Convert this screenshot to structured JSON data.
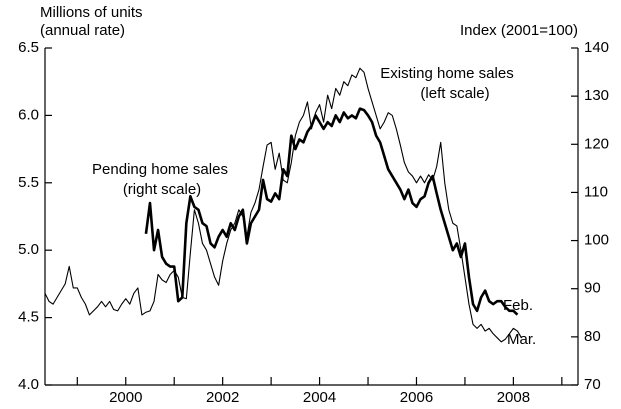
{
  "chart_data": {
    "type": "line",
    "y_label": [
      "Millions of units",
      "(annual rate)"
    ],
    "y2_label": "Index (2001=100)",
    "annotations": [
      {
        "lines": [
          "Existing home sales",
          "(left scale)"
        ]
      },
      {
        "lines": [
          "Pending home sales",
          "(right scale)"
        ]
      },
      {
        "lines": [
          "Feb."
        ]
      },
      {
        "lines": [
          "Mar."
        ]
      }
    ],
    "x": [
      "1998-05",
      "1998-06",
      "1998-07",
      "1998-08",
      "1998-09",
      "1998-10",
      "1998-11",
      "1998-12",
      "1999-01",
      "1999-02",
      "1999-03",
      "1999-04",
      "1999-05",
      "1999-06",
      "1999-07",
      "1999-08",
      "1999-09",
      "1999-10",
      "1999-11",
      "1999-12",
      "2000-01",
      "2000-02",
      "2000-03",
      "2000-04",
      "2000-05",
      "2000-06",
      "2000-07",
      "2000-08",
      "2000-09",
      "2000-10",
      "2000-11",
      "2000-12",
      "2001-01",
      "2001-02",
      "2001-03",
      "2001-04",
      "2001-05",
      "2001-06",
      "2001-07",
      "2001-08",
      "2001-09",
      "2001-10",
      "2001-11",
      "2001-12",
      "2002-01",
      "2002-02",
      "2002-03",
      "2002-04",
      "2002-05",
      "2002-06",
      "2002-07",
      "2002-08",
      "2002-09",
      "2002-10",
      "2002-11",
      "2002-12",
      "2003-01",
      "2003-02",
      "2003-03",
      "2003-04",
      "2003-05",
      "2003-06",
      "2003-07",
      "2003-08",
      "2003-09",
      "2003-10",
      "2003-11",
      "2003-12",
      "2004-01",
      "2004-02",
      "2004-03",
      "2004-04",
      "2004-05",
      "2004-06",
      "2004-07",
      "2004-08",
      "2004-09",
      "2004-10",
      "2004-11",
      "2004-12",
      "2005-01",
      "2005-02",
      "2005-03",
      "2005-04",
      "2005-05",
      "2005-06",
      "2005-07",
      "2005-08",
      "2005-09",
      "2005-10",
      "2005-11",
      "2005-12",
      "2006-01",
      "2006-02",
      "2006-03",
      "2006-04",
      "2006-05",
      "2006-06",
      "2006-07",
      "2006-08",
      "2006-09",
      "2006-10",
      "2006-11",
      "2006-12",
      "2007-01",
      "2007-02",
      "2007-03",
      "2007-04",
      "2007-05",
      "2007-06",
      "2007-07",
      "2007-08",
      "2007-09",
      "2007-10",
      "2007-11",
      "2007-12",
      "2008-01",
      "2008-02",
      "2008-03"
    ],
    "series": [
      {
        "name": "Existing home sales",
        "color": "#000000",
        "width": 1.1,
        "axis": "y",
        "values": [
          4.68,
          4.62,
          4.6,
          4.65,
          4.7,
          4.75,
          4.88,
          4.72,
          4.72,
          4.65,
          4.6,
          4.52,
          4.55,
          4.58,
          4.62,
          4.58,
          4.62,
          4.56,
          4.55,
          4.6,
          4.64,
          4.6,
          4.68,
          4.72,
          4.52,
          4.54,
          4.55,
          4.62,
          4.82,
          4.78,
          4.76,
          4.82,
          4.85,
          4.8,
          4.65,
          4.64,
          4.98,
          5.3,
          5.2,
          5.05,
          5.0,
          4.9,
          4.8,
          4.74,
          4.92,
          5.05,
          5.15,
          5.2,
          5.3,
          5.25,
          5.1,
          5.28,
          5.35,
          5.45,
          5.62,
          5.78,
          5.8,
          5.6,
          5.72,
          5.52,
          5.5,
          5.65,
          5.85,
          5.95,
          6.0,
          6.1,
          5.9,
          6.02,
          6.08,
          5.95,
          6.15,
          6.05,
          6.2,
          6.15,
          6.25,
          6.22,
          6.3,
          6.28,
          6.35,
          6.32,
          6.2,
          6.1,
          6.0,
          5.9,
          5.95,
          6.02,
          6.0,
          5.9,
          5.78,
          5.65,
          5.58,
          5.55,
          5.5,
          5.55,
          5.5,
          5.56,
          5.52,
          5.62,
          5.8,
          5.5,
          5.3,
          5.2,
          5.18,
          5.0,
          4.8,
          4.6,
          4.45,
          4.42,
          4.45,
          4.4,
          4.42,
          4.38,
          4.35,
          4.32,
          4.34,
          4.38,
          4.42,
          4.4,
          4.35
        ]
      },
      {
        "name": "Pending home sales",
        "color": "#000000",
        "width": 2.6,
        "axis": "y2",
        "values": [
          null,
          null,
          null,
          null,
          null,
          null,
          null,
          null,
          null,
          null,
          null,
          null,
          null,
          null,
          null,
          null,
          null,
          null,
          null,
          null,
          null,
          null,
          null,
          null,
          null,
          101.4,
          107.8,
          98.0,
          102.2,
          96.6,
          95.2,
          94.6,
          94.6,
          87.4,
          88.2,
          103.6,
          109.2,
          107.0,
          106.4,
          103.6,
          103.0,
          99.4,
          98.6,
          100.8,
          102.2,
          100.8,
          103.6,
          102.2,
          105.0,
          106.4,
          99.4,
          103.6,
          105.0,
          106.4,
          112.6,
          108.6,
          108.1,
          109.8,
          108.6,
          114.8,
          113.4,
          121.8,
          119.0,
          121.0,
          120.4,
          122.6,
          123.8,
          126.0,
          124.6,
          123.2,
          124.6,
          123.8,
          126.0,
          124.6,
          126.6,
          125.4,
          126.0,
          125.4,
          127.4,
          127.1,
          126.0,
          124.6,
          121.8,
          120.4,
          117.6,
          114.8,
          113.4,
          112.0,
          110.6,
          108.6,
          110.6,
          107.8,
          107.0,
          108.6,
          109.2,
          112.0,
          113.4,
          109.8,
          106.4,
          103.6,
          100.8,
          98.0,
          99.4,
          96.6,
          99.4,
          92.4,
          86.8,
          85.4,
          88.2,
          89.6,
          87.4,
          86.8,
          87.4,
          87.4,
          86.2,
          85.4,
          85.4,
          84.6,
          null
        ]
      }
    ],
    "xlim": [
      "1998-05",
      "2009-05"
    ],
    "xticks": [
      {
        "value": "2000-01",
        "label": "2000"
      },
      {
        "value": "2002-01",
        "label": "2002"
      },
      {
        "value": "2004-01",
        "label": "2004"
      },
      {
        "value": "2006-01",
        "label": "2006"
      },
      {
        "value": "2008-01",
        "label": "2008"
      }
    ],
    "xminorticks": [
      "1999-01",
      "2001-01",
      "2003-01",
      "2005-01",
      "2007-01",
      "2009-01"
    ],
    "ylim": [
      4.0,
      6.5
    ],
    "yticks": [
      {
        "value": 4.0,
        "label": "4.0"
      },
      {
        "value": 4.5,
        "label": "4.5"
      },
      {
        "value": 5.0,
        "label": "5.0"
      },
      {
        "value": 5.5,
        "label": "5.5"
      },
      {
        "value": 6.0,
        "label": "6.0"
      },
      {
        "value": 6.5,
        "label": "6.5"
      }
    ],
    "y2lim": [
      70,
      140
    ],
    "y2ticks": [
      70,
      80,
      90,
      100,
      110,
      120,
      130,
      140
    ],
    "grid": false
  }
}
